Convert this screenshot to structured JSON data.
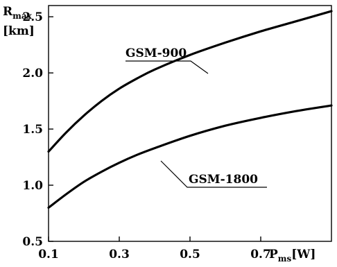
{
  "chart_data": {
    "type": "line",
    "ylabel_main": "R",
    "ylabel_sub": "max",
    "ylabel_unit": "[km]",
    "xlabel_main": "P",
    "xlabel_sub": "ms",
    "xlabel_unit": "[W]",
    "xlim": [
      0.1,
      0.9
    ],
    "ylim": [
      0.5,
      2.6
    ],
    "xticks": [
      0.1,
      0.3,
      0.5,
      0.7
    ],
    "xtick_labels": [
      "0.1",
      "0.3",
      "0.5",
      "0.7"
    ],
    "yticks": [
      0.5,
      1.0,
      1.5,
      2.0,
      2.5
    ],
    "ytick_labels": [
      "0.5",
      "1.0",
      "1.5",
      "2.0",
      "2.5"
    ],
    "grid": false,
    "series": [
      {
        "name": "GSM-900",
        "x": [
          0.1,
          0.15,
          0.2,
          0.25,
          0.3,
          0.35,
          0.4,
          0.5,
          0.6,
          0.7,
          0.8,
          0.9
        ],
        "y": [
          1.3,
          1.47,
          1.62,
          1.75,
          1.86,
          1.95,
          2.03,
          2.16,
          2.27,
          2.37,
          2.46,
          2.55
        ]
      },
      {
        "name": "GSM-1800",
        "x": [
          0.1,
          0.15,
          0.2,
          0.25,
          0.3,
          0.35,
          0.4,
          0.5,
          0.6,
          0.7,
          0.8,
          0.9
        ],
        "y": [
          0.8,
          0.92,
          1.03,
          1.12,
          1.2,
          1.27,
          1.33,
          1.44,
          1.53,
          1.6,
          1.66,
          1.71
        ]
      }
    ]
  }
}
